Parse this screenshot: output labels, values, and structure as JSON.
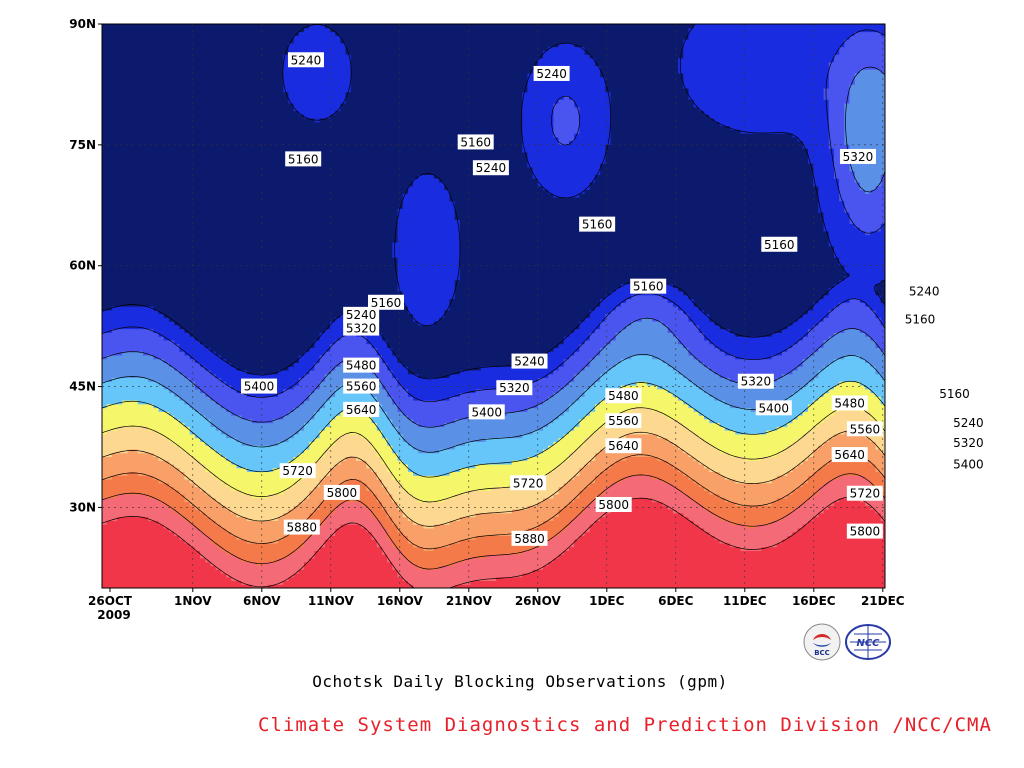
{
  "chart_data": {
    "type": "contour",
    "title": "Ochotsk Daily Blocking Observations (gpm)",
    "credit": "Climate System Diagnostics and Prediction Division /NCC/CMA",
    "y_tick_labels": [
      "90N",
      "75N",
      "60N",
      "45N",
      "30N"
    ],
    "x_tick_labels": [
      "26OCT",
      "1NOV",
      "6NOV",
      "11NOV",
      "16NOV",
      "21NOV",
      "26NOV",
      "1DEC",
      "6DEC",
      "11DEC",
      "16DEC",
      "21DEC"
    ],
    "x_start_year": "2009",
    "y_ticks_lat": [
      90,
      75,
      60,
      45,
      30
    ],
    "ylim": [
      20,
      90
    ],
    "contour_levels": [
      5160,
      5240,
      5320,
      5400,
      5480,
      5560,
      5640,
      5720,
      5800,
      5880
    ],
    "grid": true,
    "fill_colors": [
      "#0c1a6e",
      "#1a2ce0",
      "#4a55f0",
      "#5a90e6",
      "#66c6fa",
      "#f6f66a",
      "#fcd890",
      "#f8a068",
      "#f57a4a",
      "#f46a76",
      "#f03648"
    ],
    "contour_labels": [
      {
        "text": "5240",
        "lat": 85.5,
        "day": 14.2
      },
      {
        "text": "5160",
        "lat": 73.2,
        "day": 14
      },
      {
        "text": "5160",
        "lat": 75.3,
        "day": 26.5
      },
      {
        "text": "5240",
        "lat": 72.1,
        "day": 27.6
      },
      {
        "text": "5240",
        "lat": 83.8,
        "day": 32
      },
      {
        "text": "5160",
        "lat": 65.1,
        "day": 35.3
      },
      {
        "text": "5160",
        "lat": 57.4,
        "day": 39
      },
      {
        "text": "5160",
        "lat": 62.6,
        "day": 48.5
      },
      {
        "text": "5320",
        "lat": 73.5,
        "day": 54.2
      },
      {
        "text": "5240",
        "lat": 56.8,
        "day": 59
      },
      {
        "text": "5160",
        "lat": 53.3,
        "day": 58.7
      },
      {
        "text": "5160",
        "lat": 55.4,
        "day": 20
      },
      {
        "text": "5240",
        "lat": 53.9,
        "day": 18.2
      },
      {
        "text": "5320",
        "lat": 52.2,
        "day": 18.2
      },
      {
        "text": "5480",
        "lat": 47.6,
        "day": 18.2
      },
      {
        "text": "5560",
        "lat": 45.0,
        "day": 18.2
      },
      {
        "text": "5640",
        "lat": 42.1,
        "day": 18.2
      },
      {
        "text": "5400",
        "lat": 45.0,
        "day": 10.8
      },
      {
        "text": "5720",
        "lat": 34.5,
        "day": 13.6
      },
      {
        "text": "5800",
        "lat": 31.8,
        "day": 16.8
      },
      {
        "text": "5880",
        "lat": 27.5,
        "day": 13.9
      },
      {
        "text": "5240",
        "lat": 48.1,
        "day": 30.4
      },
      {
        "text": "5320",
        "lat": 44.8,
        "day": 29.3
      },
      {
        "text": "5400",
        "lat": 41.8,
        "day": 27.3
      },
      {
        "text": "5480",
        "lat": 43.8,
        "day": 37.2
      },
      {
        "text": "5560",
        "lat": 40.7,
        "day": 37.2
      },
      {
        "text": "5640",
        "lat": 37.6,
        "day": 37.2
      },
      {
        "text": "5720",
        "lat": 33.0,
        "day": 30.3
      },
      {
        "text": "5800",
        "lat": 30.3,
        "day": 36.5
      },
      {
        "text": "5880",
        "lat": 26.1,
        "day": 30.4
      },
      {
        "text": "5320",
        "lat": 45.6,
        "day": 46.8
      },
      {
        "text": "5400",
        "lat": 42.3,
        "day": 48.1
      },
      {
        "text": "5480",
        "lat": 42.9,
        "day": 53.6
      },
      {
        "text": "5560",
        "lat": 39.7,
        "day": 54.7
      },
      {
        "text": "5640",
        "lat": 36.5,
        "day": 53.6
      },
      {
        "text": "5720",
        "lat": 31.7,
        "day": 54.7
      },
      {
        "text": "5800",
        "lat": 27.0,
        "day": 54.7
      },
      {
        "text": "5160",
        "lat": 44.1,
        "day": 61.2
      },
      {
        "text": "5240",
        "lat": 40.5,
        "day": 62.2
      },
      {
        "text": "5320",
        "lat": 38.0,
        "day": 62.2
      },
      {
        "text": "5400",
        "lat": 35.3,
        "day": 62.2
      }
    ]
  }
}
